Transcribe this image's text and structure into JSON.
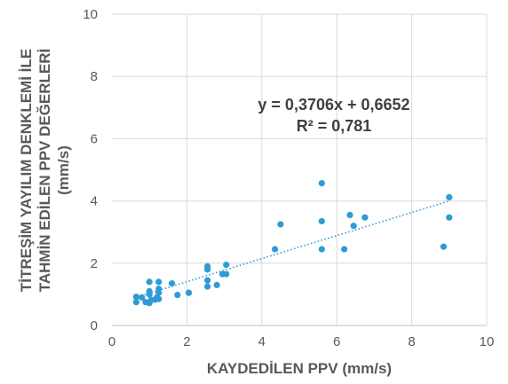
{
  "chart_data": {
    "type": "scatter",
    "xlabel": "KAYDEDİLEN  PPV (mm/s)",
    "ylabel_lines": [
      "TİTREŞİM YAYILIM DENKLEMİ İLE",
      "TAHMİN EDİLEN PPV DEĞERLERİ",
      "(mm/s)"
    ],
    "xlim": [
      0,
      10
    ],
    "ylim": [
      0,
      10
    ],
    "x_ticks": [
      0,
      2,
      4,
      6,
      8,
      10
    ],
    "y_ticks": [
      0,
      2,
      4,
      6,
      8,
      10
    ],
    "grid": true,
    "point_color": "#2e9bd6",
    "trendline": {
      "slope": 0.3706,
      "intercept": 0.6652,
      "x_range": [
        0.6,
        9.0
      ],
      "color": "#2e9bd6",
      "style": "dotted",
      "equation_label": "y = 0,3706x + 0,6652",
      "r2_label": "R² = 0,781"
    },
    "series": [
      {
        "points": [
          [
            0.65,
            0.75
          ],
          [
            0.65,
            0.92
          ],
          [
            0.8,
            0.9
          ],
          [
            0.9,
            0.75
          ],
          [
            1.0,
            0.72
          ],
          [
            1.0,
            1.0
          ],
          [
            1.0,
            1.1
          ],
          [
            1.0,
            1.4
          ],
          [
            1.05,
            0.82
          ],
          [
            1.15,
            0.83
          ],
          [
            1.2,
            0.9
          ],
          [
            1.25,
            1.05
          ],
          [
            1.25,
            1.18
          ],
          [
            1.25,
            1.4
          ],
          [
            1.25,
            0.85
          ],
          [
            1.6,
            1.35
          ],
          [
            1.75,
            0.98
          ],
          [
            2.05,
            1.05
          ],
          [
            2.55,
            1.25
          ],
          [
            2.55,
            1.45
          ],
          [
            2.55,
            1.8
          ],
          [
            2.55,
            1.9
          ],
          [
            2.8,
            1.3
          ],
          [
            2.95,
            1.65
          ],
          [
            3.05,
            1.65
          ],
          [
            3.05,
            1.95
          ],
          [
            4.35,
            2.45
          ],
          [
            4.5,
            3.25
          ],
          [
            5.6,
            2.45
          ],
          [
            5.6,
            3.35
          ],
          [
            5.6,
            4.57
          ],
          [
            6.2,
            2.45
          ],
          [
            6.35,
            3.55
          ],
          [
            6.45,
            3.2
          ],
          [
            6.75,
            3.47
          ],
          [
            8.85,
            2.53
          ],
          [
            9.0,
            3.47
          ],
          [
            9.0,
            4.12
          ]
        ]
      }
    ]
  }
}
